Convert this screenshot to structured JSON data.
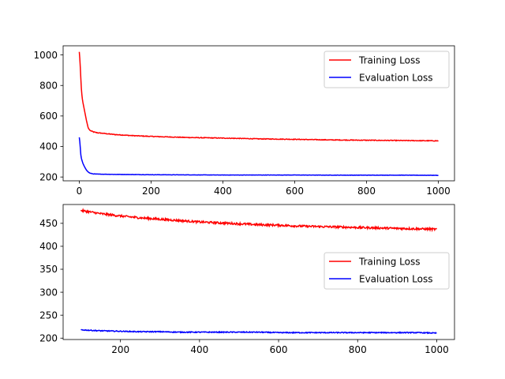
{
  "chart_data": [
    {
      "type": "line",
      "title": "",
      "xlabel": "",
      "ylabel": "",
      "xlim": [
        -45,
        1045
      ],
      "ylim": [
        175,
        1060
      ],
      "xticks": [
        0,
        200,
        400,
        600,
        800,
        1000
      ],
      "yticks": [
        200,
        400,
        600,
        800,
        1000
      ],
      "grid": false,
      "legend_position": "top-right",
      "x": [
        0,
        2,
        4,
        6,
        8,
        10,
        15,
        20,
        25,
        30,
        40,
        50,
        75,
        100,
        150,
        200,
        300,
        400,
        500,
        600,
        700,
        800,
        900,
        1000
      ],
      "series": [
        {
          "name": "Training Loss",
          "color": "#ff0000",
          "values": [
            1020,
            960,
            860,
            770,
            720,
            690,
            630,
            570,
            520,
            505,
            495,
            490,
            484,
            478,
            471,
            466,
            459,
            455,
            450,
            447,
            443,
            441,
            439,
            437
          ]
        },
        {
          "name": "Evaluation Loss",
          "color": "#0000ff",
          "values": [
            460,
            420,
            350,
            320,
            305,
            290,
            265,
            245,
            232,
            225,
            220,
            219,
            218,
            217,
            216,
            215,
            214,
            213,
            213,
            213,
            212,
            212,
            212,
            211
          ]
        }
      ]
    },
    {
      "type": "line",
      "title": "",
      "xlabel": "",
      "ylabel": "",
      "xlim": [
        55,
        1045
      ],
      "ylim": [
        197,
        491
      ],
      "xticks": [
        200,
        400,
        600,
        800,
        1000
      ],
      "yticks": [
        200,
        250,
        300,
        350,
        400,
        450
      ],
      "grid": false,
      "legend_position": "center-right",
      "x": [
        100,
        150,
        200,
        250,
        300,
        350,
        400,
        450,
        500,
        550,
        600,
        650,
        700,
        750,
        800,
        850,
        900,
        950,
        1000
      ],
      "series": [
        {
          "name": "Training Loss",
          "color": "#ff0000",
          "values": [
            478,
            471,
            466,
            462,
            459,
            456,
            453,
            451,
            449,
            447,
            446,
            444,
            443,
            442,
            441,
            440,
            439,
            438,
            437
          ]
        },
        {
          "name": "Evaluation Loss",
          "color": "#0000ff",
          "values": [
            218,
            216,
            215,
            214,
            214,
            213,
            213,
            213,
            213,
            213,
            212,
            212,
            212,
            212,
            212,
            212,
            212,
            212,
            211
          ]
        }
      ]
    }
  ]
}
